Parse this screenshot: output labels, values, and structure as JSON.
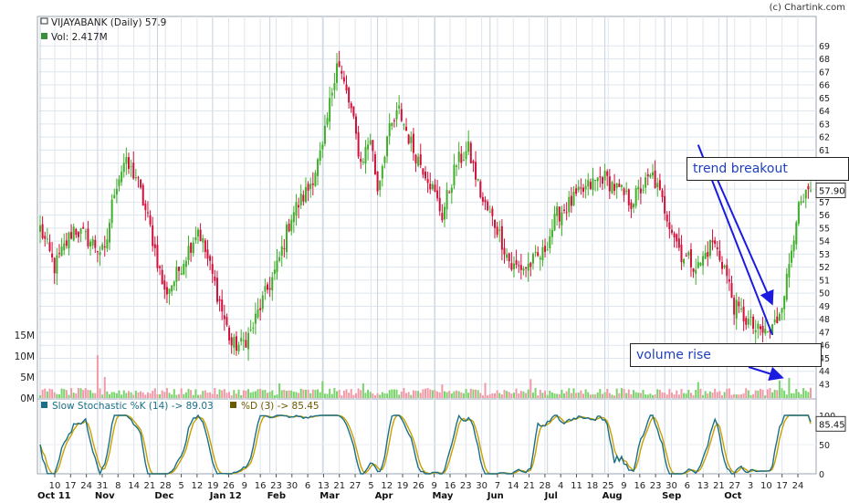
{
  "header": {
    "credit": "(c) Chartink.com",
    "price_legend": "VIJAYABANK (Daily) 57.9",
    "volume_legend": "Vol: 2.417M",
    "osc_k_legend": "Slow Stochastic %K (14) -> 89.03",
    "osc_d_legend": "%D (3) -> 85.45"
  },
  "colors": {
    "up": "#3fae2a",
    "down": "#d0103a",
    "vol_up": "#79d36b",
    "vol_down": "#f09aa8",
    "k_line": "#1b6f86",
    "d_line": "#c8a000",
    "grid": "#dfe6ee",
    "trendline": "#1a1ae0",
    "annotation_text": "#1f3fbf"
  },
  "annotations": {
    "trend_breakout": "trend breakout",
    "volume_rise": "volume rise"
  },
  "chart_data": [
    {
      "type": "candlestick",
      "name": "price",
      "ylim": [
        43,
        70
      ],
      "y_ticks": [
        "69",
        "68",
        "67",
        "66",
        "65",
        "64",
        "63",
        "62",
        "61",
        "60",
        "59",
        "58",
        "57",
        "56",
        "55",
        "54",
        "53",
        "52",
        "51",
        "50",
        "49",
        "48",
        "47",
        "46",
        "45",
        "44",
        "43"
      ],
      "last_value_label": "57.90",
      "x_month_labels": [
        "Oct 11",
        "Nov",
        "Dec",
        "Jan 12",
        "Feb",
        "Mar",
        "Apr",
        "May",
        "Jun",
        "Jul",
        "Aug",
        "Sep",
        "Oct"
      ],
      "x_day_labels": [
        "10",
        "17",
        "24",
        "31",
        "8",
        "14",
        "21",
        "28",
        "5",
        "12",
        "19",
        "26",
        "9",
        "16",
        "23",
        "30",
        "6",
        "13",
        "21",
        "27",
        "5",
        "12",
        "19",
        "26",
        "9",
        "16",
        "23",
        "30",
        "7",
        "14",
        "21",
        "28",
        "4",
        "11",
        "18",
        "25",
        "9",
        "16",
        "23",
        "30",
        "6",
        "13",
        "21",
        "27",
        "3",
        "10",
        "17",
        "24"
      ],
      "close_anchors": [
        [
          0,
          55
        ],
        [
          6,
          52
        ],
        [
          14,
          55
        ],
        [
          21,
          54
        ],
        [
          27,
          53
        ],
        [
          31,
          58
        ],
        [
          35,
          60
        ],
        [
          40,
          59
        ],
        [
          46,
          55
        ],
        [
          52,
          50
        ],
        [
          56,
          51
        ],
        [
          61,
          53
        ],
        [
          66,
          55
        ],
        [
          71,
          52
        ],
        [
          77,
          48
        ],
        [
          80,
          46
        ],
        [
          84,
          46
        ],
        [
          88,
          47
        ],
        [
          92,
          49
        ],
        [
          99,
          52
        ],
        [
          105,
          56
        ],
        [
          112,
          58
        ],
        [
          118,
          61
        ],
        [
          124,
          68
        ],
        [
          130,
          64
        ],
        [
          134,
          60
        ],
        [
          138,
          62
        ],
        [
          141,
          58
        ],
        [
          145,
          62
        ],
        [
          150,
          64
        ],
        [
          156,
          61
        ],
        [
          162,
          59
        ],
        [
          168,
          56
        ],
        [
          174,
          60
        ],
        [
          179,
          61
        ],
        [
          185,
          57
        ],
        [
          191,
          55
        ],
        [
          197,
          52
        ],
        [
          203,
          52
        ],
        [
          210,
          53
        ],
        [
          216,
          56
        ],
        [
          222,
          57
        ],
        [
          228,
          58
        ],
        [
          235,
          59
        ],
        [
          241,
          58
        ],
        [
          247,
          57
        ],
        [
          251,
          58
        ],
        [
          256,
          59
        ],
        [
          262,
          56
        ],
        [
          268,
          53
        ],
        [
          275,
          52
        ],
        [
          281,
          54
        ],
        [
          286,
          52
        ],
        [
          290,
          49
        ],
        [
          295,
          48
        ],
        [
          300,
          47
        ],
        [
          305,
          47
        ],
        [
          308,
          48
        ],
        [
          312,
          51
        ],
        [
          316,
          56
        ],
        [
          322,
          57.9
        ]
      ],
      "trendline": [
        [
          275,
          61.4
        ],
        [
          306,
          46.8
        ]
      ]
    },
    {
      "type": "bar",
      "name": "volume",
      "ylim": [
        0,
        15
      ],
      "y_ticks": [
        "15M",
        "10M",
        "5M",
        "0M"
      ],
      "spikes": [
        [
          24,
          10.2
        ],
        [
          27,
          5
        ],
        [
          100,
          3.5
        ],
        [
          118,
          4
        ],
        [
          135,
          3.5
        ],
        [
          168,
          3.2
        ],
        [
          186,
          3.6
        ],
        [
          205,
          4.5
        ],
        [
          275,
          3.8
        ],
        [
          309,
          4.2
        ],
        [
          313,
          4.8
        ]
      ],
      "last_value": 2.417
    },
    {
      "type": "line",
      "name": "stochastic",
      "ylim": [
        0,
        100
      ],
      "y_ticks": [
        "100",
        "50",
        "0"
      ],
      "last_value_label": "85.45",
      "series": [
        {
          "name": "Slow Stochastic %K (14)",
          "last": 89.03
        },
        {
          "name": "%D (3)",
          "last": 85.45
        }
      ]
    }
  ]
}
